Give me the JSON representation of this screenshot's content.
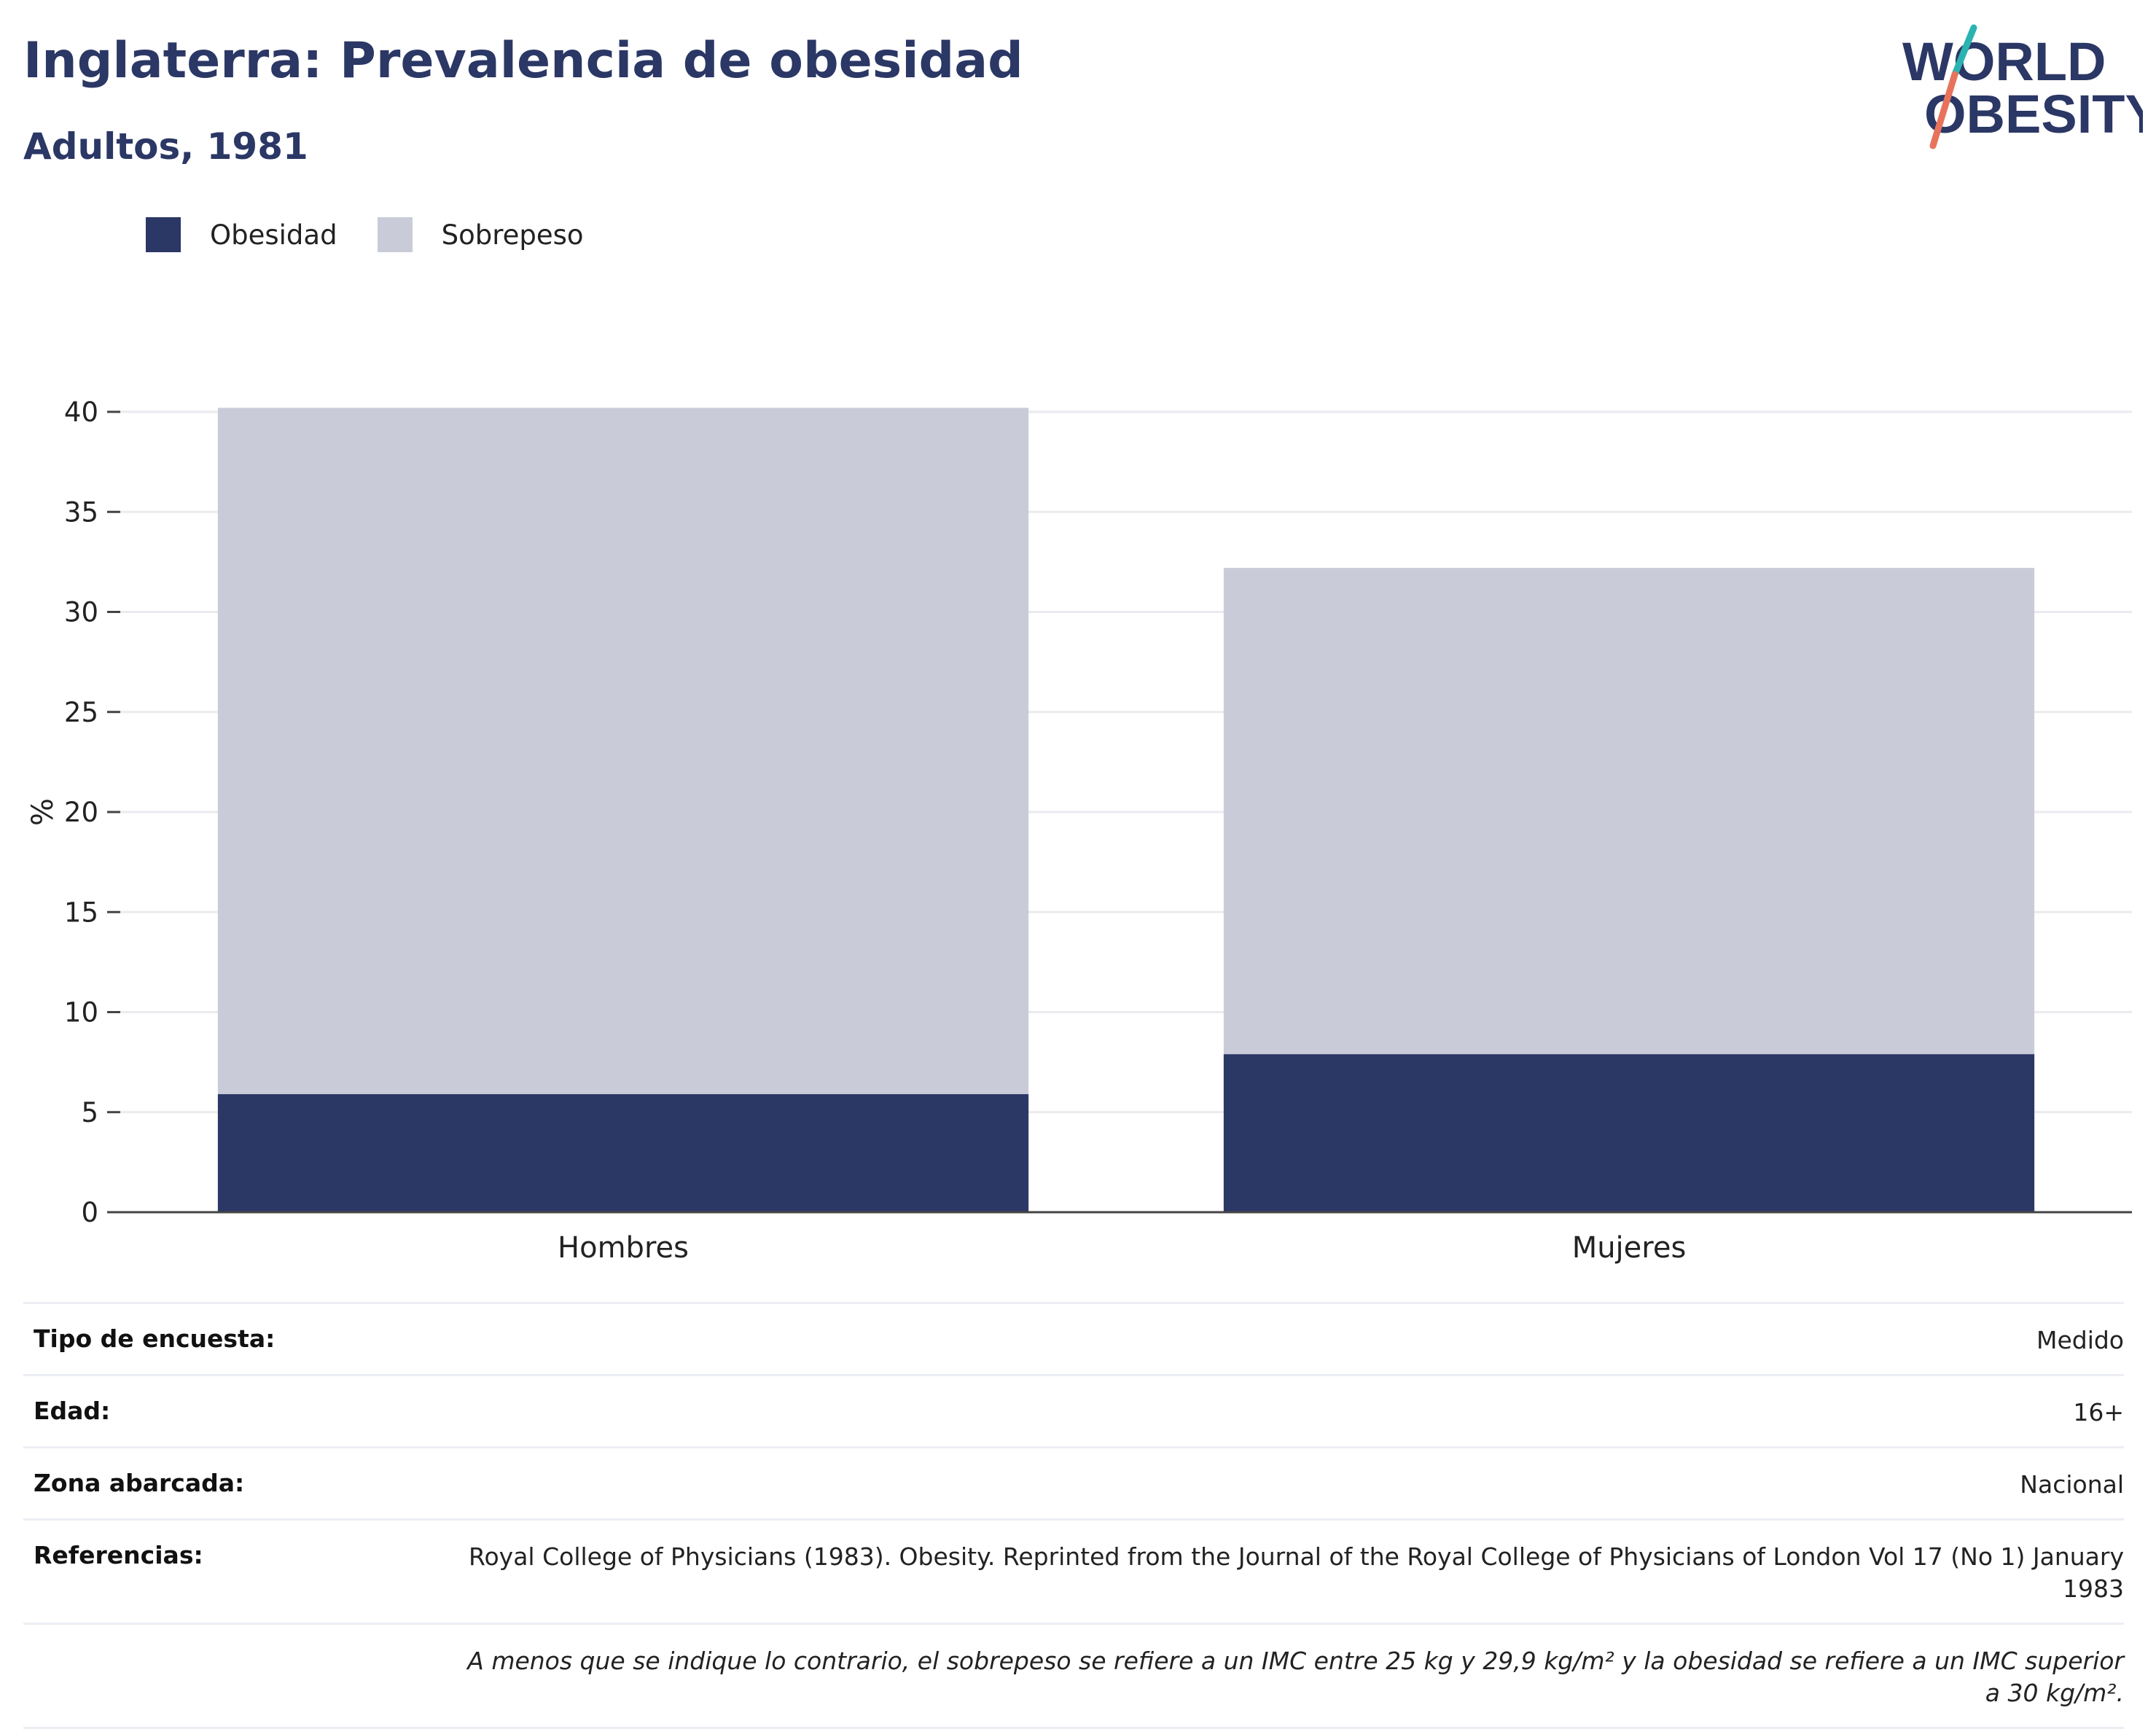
{
  "header": {
    "title": "Inglaterra: Prevalencia de obesidad",
    "subtitle": "Adultos, 1981",
    "logo_line1": "WORLD",
    "logo_line2": "OBESITY"
  },
  "legend": [
    {
      "label": "Obesidad",
      "color": "#2b3765"
    },
    {
      "label": "Sobrepeso",
      "color": "#c9ccd8"
    }
  ],
  "chart_data": {
    "type": "bar",
    "stacked": true,
    "categories": [
      "Hombres",
      "Mujeres"
    ],
    "series": [
      {
        "name": "Obesidad",
        "values": [
          5.9,
          7.9
        ],
        "color": "#2b3765"
      },
      {
        "name": "Sobrepeso",
        "values": [
          34.3,
          24.3
        ],
        "color": "#c9ccd8"
      }
    ],
    "ylabel": "%",
    "ylim": [
      0,
      40
    ],
    "yticks": [
      0,
      5,
      10,
      15,
      20,
      25,
      30,
      35,
      40
    ],
    "grid": true,
    "legend_position": "top-left"
  },
  "meta": {
    "rows": [
      {
        "key": "Tipo de encuesta:",
        "value": "Medido"
      },
      {
        "key": "Edad:",
        "value": "16+"
      },
      {
        "key": "Zona abarcada:",
        "value": "Nacional"
      },
      {
        "key": "Referencias:",
        "value": "Royal College of Physicians (1983). Obesity. Reprinted from the Journal of the Royal College of Physicians of London Vol 17 (No 1) January 1983"
      }
    ],
    "note": "A menos que se indique lo contrario, el sobrepeso se refiere a un IMC entre 25 kg y 29,9 kg/m² y la obesidad se refiere a un IMC superior a 30 kg/m²."
  }
}
